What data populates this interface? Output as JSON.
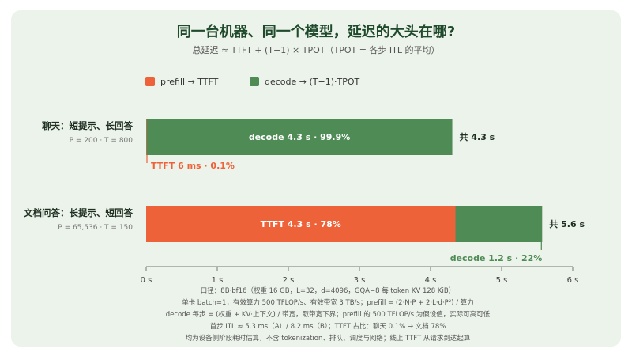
{
  "chart_data": {
    "type": "bar",
    "orientation": "horizontal",
    "stacked": true,
    "title": "同一台机器、同一个模型，延迟的大头在哪?",
    "subtitle": "总延迟 ≈ TTFT + (T−1) × TPOT（TPOT = 各步 ITL 的平均）",
    "legend_position": "top-left",
    "grid": false,
    "xlim": [
      0,
      6
    ],
    "xticks": [
      {
        "v": 0,
        "label": "0 s"
      },
      {
        "v": 1,
        "label": "1 s"
      },
      {
        "v": 2,
        "label": "2 s"
      },
      {
        "v": 3,
        "label": "3 s"
      },
      {
        "v": 4,
        "label": "4 s"
      },
      {
        "v": 5,
        "label": "5 s"
      },
      {
        "v": 6,
        "label": "6 s"
      }
    ],
    "categories": [
      {
        "label": "聊天：短提示、长回答",
        "sublabel": "P = 200 · T = 800",
        "total_label": "共 4.3 s"
      },
      {
        "label": "文档问答：长提示、短回答",
        "sublabel": "P = 65,536 · T = 150",
        "total_label": "共 5.6 s"
      }
    ],
    "series": [
      {
        "name": "prefill → TTFT",
        "color": "#ee6239",
        "values": [
          0.006,
          4.35
        ],
        "bar_labels": [
          "TTFT 6 ms · 0.1%",
          "TTFT 4.3 s · 78%"
        ]
      },
      {
        "name": "decode → (T−1)·TPOT",
        "color": "#4e8b55",
        "values": [
          4.3,
          1.22
        ],
        "bar_labels": [
          "decode 4.3 s · 99.9%",
          "decode 1.2 s · 22%"
        ]
      }
    ]
  },
  "footnotes": [
    "口径：8B·bf16（权重 16 GB，L=32，d=4096，GQA−8 每 token KV 128 KiB）",
    "单卡 batch=1，有效算力 500 TFLOP/s、有效带宽 3 TB/s；prefill = (2·N·P + 2·L·d·P²) / 算力",
    "decode 每步 = (权重 + KV·上下文) / 带宽，取带宽下界；prefill 的 500 TFLOP/s 为假设值，实际可高可低",
    "首步 ITL ≈ 5.3 ms（A）/ 8.2 ms（B）；TTFT 占比：聊天 0.1% → 文档 78%",
    "均为设备侧阶段耗时估算，不含 tokenization、排队、调度与网络；线上 TTFT 从请求到达起算"
  ],
  "colors": {
    "background": "#ecf3ea",
    "title": "#1f4a2c",
    "prefill": "#ee6239",
    "decode": "#4e8b55"
  }
}
